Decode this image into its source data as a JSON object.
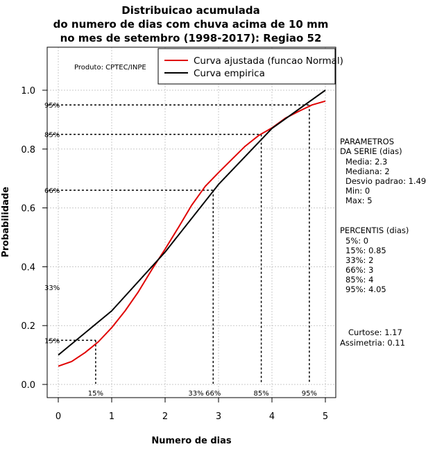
{
  "chart_data": {
    "type": "line",
    "title": [
      "Distribuicao acumulada",
      "do numero de dias com chuva acima de 10 mm",
      "no mes de setembro (1998-2017): Regiao 52"
    ],
    "xlabel": "Numero de dias",
    "ylabel": "Probabilidade",
    "xlim": [
      -0.2,
      5.2
    ],
    "ylim": [
      -0.05,
      1.15
    ],
    "xticks": [
      0,
      1,
      2,
      3,
      4,
      5
    ],
    "yticks": [
      0.0,
      0.2,
      0.4,
      0.6,
      0.8,
      1.0
    ],
    "ytick_labels": [
      "0.0",
      "0.2",
      "0.4",
      "0.6",
      "0.8",
      "1.0"
    ],
    "xtick_labels": [
      "0",
      "1",
      "2",
      "3",
      "4",
      "5"
    ],
    "grid": true,
    "product_label": "Produto: CPTEC/INPE",
    "legend": {
      "position": "top-right",
      "entries": [
        {
          "label": "Curva ajustada (funcao Normal)",
          "color": "#e00000"
        },
        {
          "label": "Curva empirica",
          "color": "#000000"
        }
      ]
    },
    "series": [
      {
        "name": "Curva ajustada (funcao Normal)",
        "color": "#e00000",
        "x": [
          0,
          0.25,
          0.5,
          0.75,
          1.0,
          1.25,
          1.5,
          1.75,
          2.0,
          2.25,
          2.5,
          2.75,
          3.0,
          3.25,
          3.5,
          3.75,
          4.0,
          4.25,
          4.5,
          4.75,
          5.0
        ],
        "y": [
          0.062,
          0.078,
          0.108,
          0.145,
          0.193,
          0.25,
          0.315,
          0.39,
          0.46,
          0.534,
          0.61,
          0.673,
          0.72,
          0.765,
          0.81,
          0.846,
          0.872,
          0.905,
          0.928,
          0.95,
          0.963
        ]
      },
      {
        "name": "Curva empirica",
        "color": "#000000",
        "x": [
          0,
          1,
          2,
          3,
          4,
          5
        ],
        "y": [
          0.1,
          0.25,
          0.45,
          0.68,
          0.87,
          1.0
        ]
      }
    ],
    "percentile_markers": [
      {
        "label": "5%",
        "x": null,
        "y": null
      },
      {
        "label": "15%",
        "x": 0.7,
        "y": 0.15,
        "show_x": true,
        "show_y": true
      },
      {
        "label": "33%",
        "x": 2.5,
        "y": 0.33,
        "show_x": true,
        "show_y": true
      },
      {
        "label": "66%",
        "x": 2.9,
        "y": 0.66,
        "show_x": true,
        "show_y": true
      },
      {
        "label": "85%",
        "x": 3.8,
        "y": 0.85,
        "show_x": true,
        "show_y": true
      },
      {
        "label": "95%",
        "x": 4.7,
        "y": 0.95,
        "show_x": true,
        "show_y": true
      }
    ],
    "parametros": {
      "header": [
        "PARAMETROS",
        "DA SERIE (dias)"
      ],
      "lines": [
        "Media: 2.3",
        "Mediana: 2",
        "Desvio padrao: 1.49",
        "Min: 0",
        "Max: 5"
      ]
    },
    "percentis": {
      "header": "PERCENTIS (dias)",
      "lines": [
        "5%: 0",
        "15%: 0.85",
        "33%: 2",
        "66%: 3",
        "85%: 4",
        "95%: 4.05"
      ]
    },
    "curtose": "Curtose: 1.17",
    "assimetria": "Assimetria: 0.11"
  }
}
